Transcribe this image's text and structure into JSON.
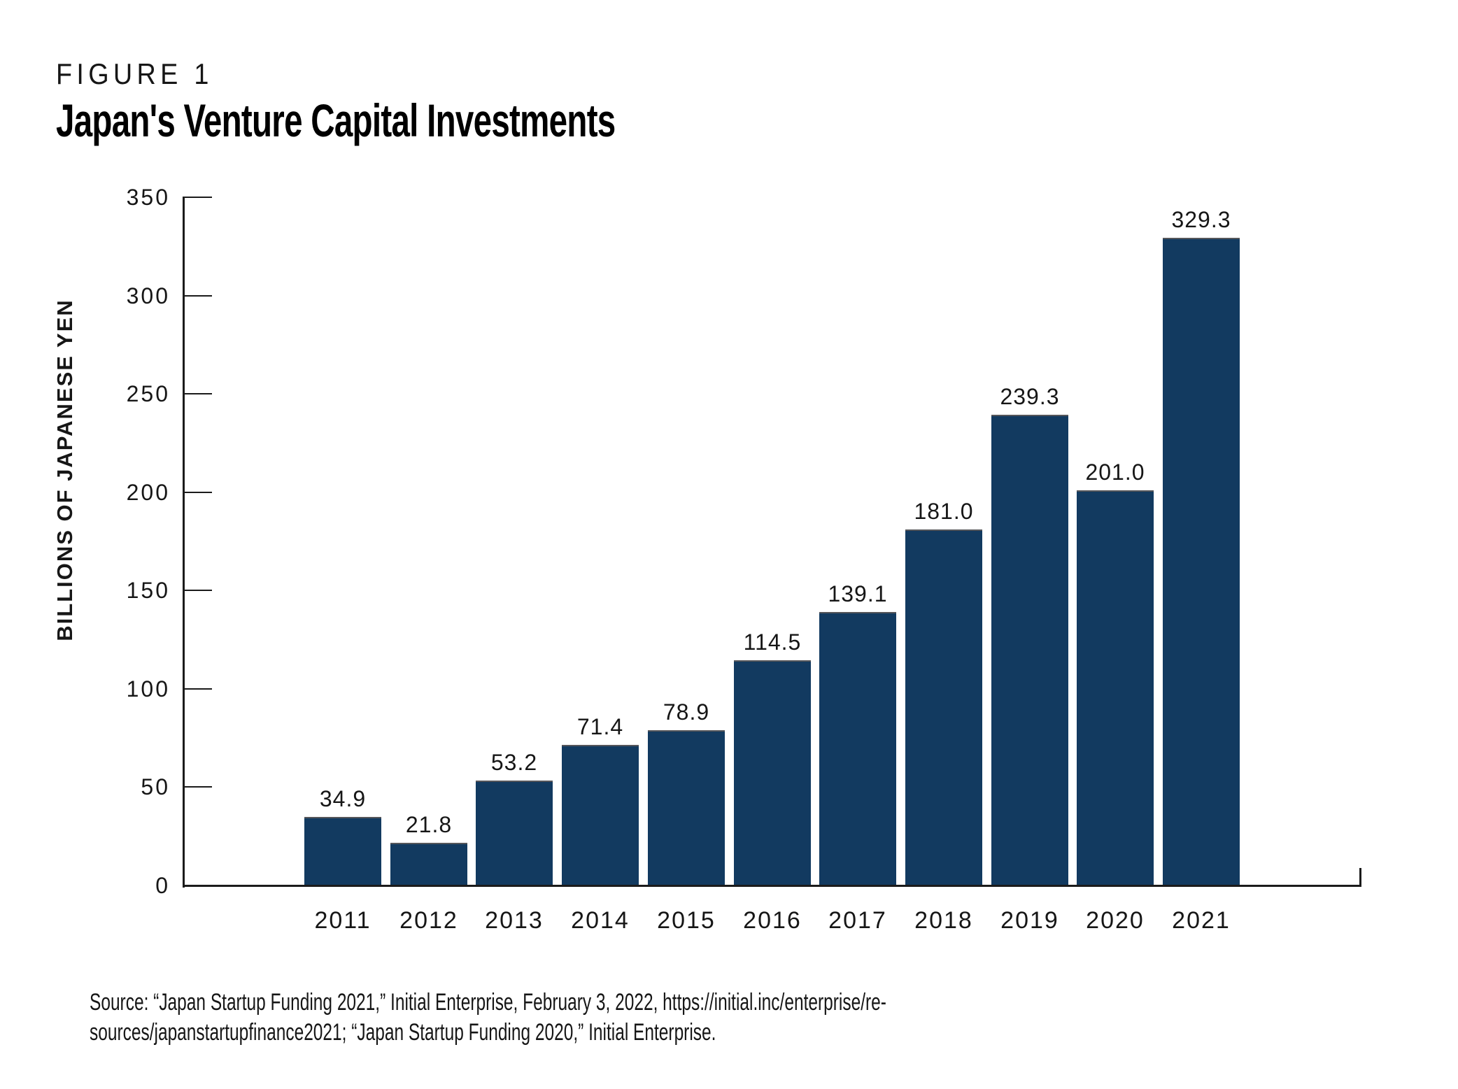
{
  "figure": {
    "label": "FIGURE 1",
    "title": "Japan's Venture Capital Investments"
  },
  "chart_data": {
    "type": "bar",
    "title": "Japan's Venture Capital Investments",
    "categories": [
      "2011",
      "2012",
      "2013",
      "2014",
      "2015",
      "2016",
      "2017",
      "2018",
      "2019",
      "2020",
      "2021"
    ],
    "values": [
      34.9,
      21.8,
      53.2,
      71.4,
      78.9,
      114.5,
      139.1,
      181.0,
      239.3,
      201.0,
      329.3
    ],
    "xlabel": "",
    "ylabel": "BILLIONS OF JAPANESE YEN",
    "ylim": [
      0,
      350
    ],
    "yticks": [
      0,
      50,
      100,
      150,
      200,
      250,
      300,
      350
    ],
    "grid": false,
    "legend": null,
    "value_label_decimals": 1,
    "bar_color": "#123A60",
    "bar_top_stroke": "#55565A",
    "axis_color": "#1B1B1B"
  },
  "source": {
    "line1": "Source: “Japan Startup Funding 2021,” Initial Enterprise, February 3, 2022, https://initial.inc/enterprise/re-",
    "line2": "sources/japanstartupfinance2021; “Japan Startup Funding 2020,” Initial Enterprise."
  }
}
